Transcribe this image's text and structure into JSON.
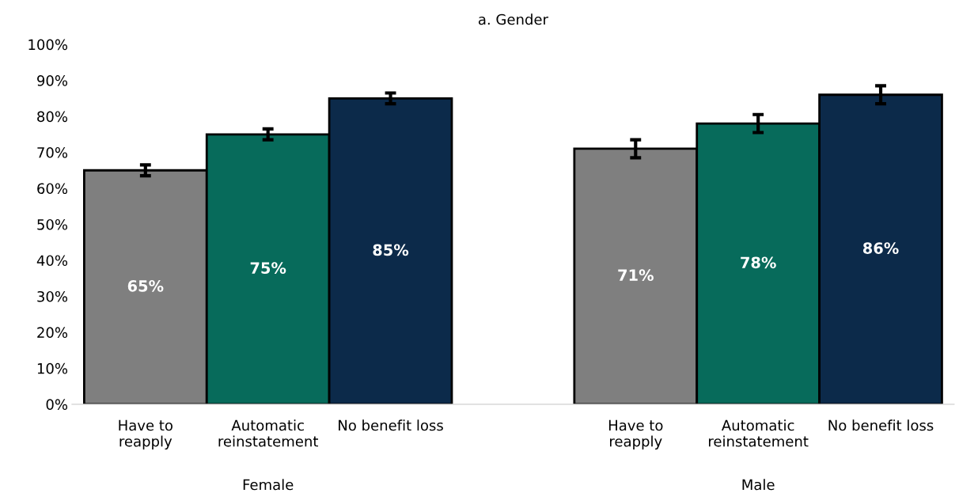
{
  "chart_data": {
    "type": "bar",
    "title": "a. Gender",
    "categories": [
      "Female",
      "Male"
    ],
    "series": [
      {
        "name": "Have to\nreapply",
        "color": "#7f7f7f",
        "values": [
          65,
          71
        ],
        "value_labels": [
          "65%",
          "71%"
        ],
        "errors": [
          1.5,
          2.5
        ]
      },
      {
        "name": "Automatic\nreinstatement",
        "color": "#076b5b",
        "values": [
          75,
          78
        ],
        "value_labels": [
          "75%",
          "78%"
        ],
        "errors": [
          1.5,
          2.5
        ]
      },
      {
        "name": "No benefit loss",
        "color": "#0c2a4a",
        "values": [
          85,
          86
        ],
        "value_labels": [
          "85%",
          "86%"
        ],
        "errors": [
          1.5,
          2.5
        ]
      }
    ],
    "ylim": [
      0,
      100
    ],
    "yticks": [
      {
        "value": 0,
        "label": "0%"
      },
      {
        "value": 10,
        "label": "10%"
      },
      {
        "value": 20,
        "label": "20%"
      },
      {
        "value": 30,
        "label": "30%"
      },
      {
        "value": 40,
        "label": "40%"
      },
      {
        "value": 50,
        "label": "50%"
      },
      {
        "value": 60,
        "label": "60%"
      },
      {
        "value": 70,
        "label": "70%"
      },
      {
        "value": 80,
        "label": "80%"
      },
      {
        "value": 90,
        "label": "90%"
      },
      {
        "value": 100,
        "label": "100%"
      }
    ],
    "grid": false,
    "legend": false
  }
}
